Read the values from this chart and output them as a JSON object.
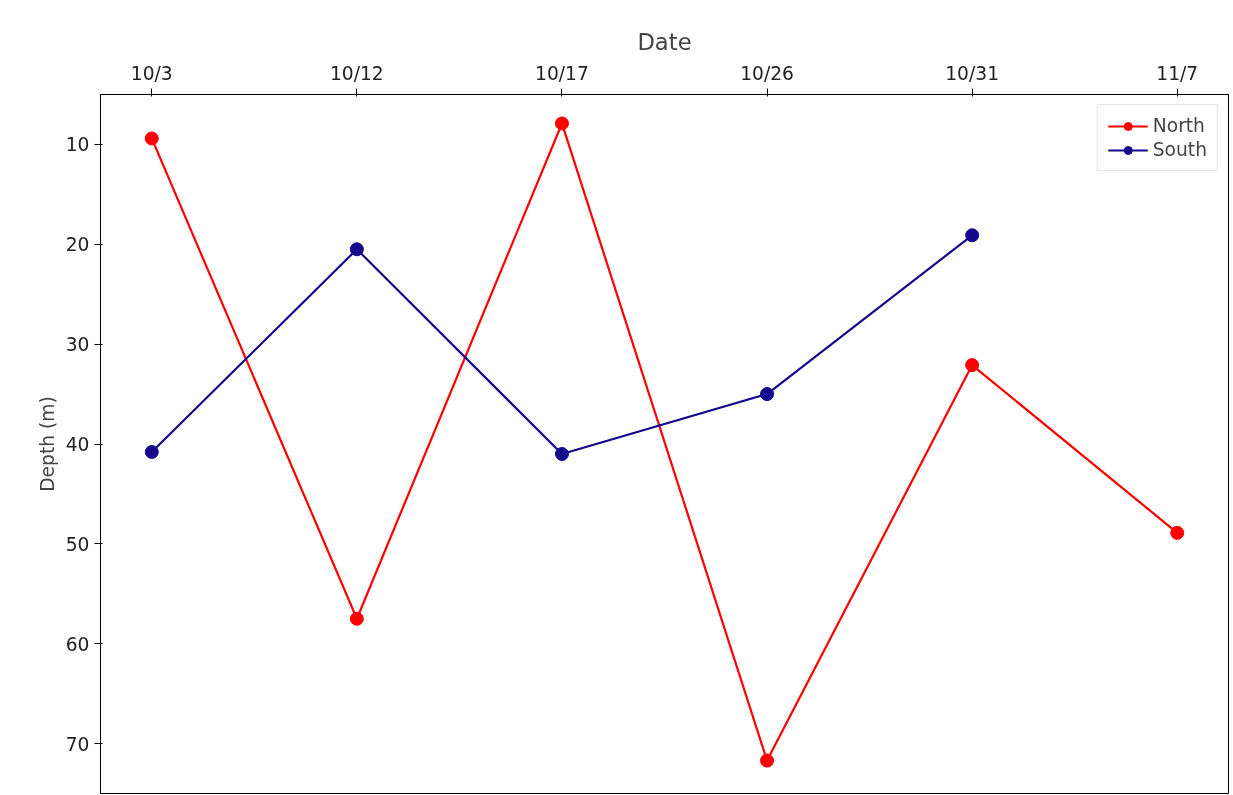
{
  "chart_data": {
    "type": "line",
    "xlabel": "Date",
    "ylabel": "Depth (m)",
    "categories": [
      "10/3",
      "10/12",
      "10/17",
      "10/26",
      "10/31",
      "11/7"
    ],
    "series": [
      {
        "name": "North",
        "color": "#ff0000",
        "values": [
          9.4,
          57.5,
          7.9,
          71.7,
          32.1,
          48.9
        ]
      },
      {
        "name": "South",
        "color": "#14088c",
        "values": [
          40.8,
          20.5,
          41.0,
          35.0,
          19.1,
          null
        ]
      }
    ],
    "ylim": [
      75,
      5
    ],
    "yticks": [
      10,
      20,
      30,
      40,
      50,
      60,
      70
    ],
    "grid": false,
    "legend": "top right",
    "marker": "circle",
    "line_style": "solid"
  }
}
